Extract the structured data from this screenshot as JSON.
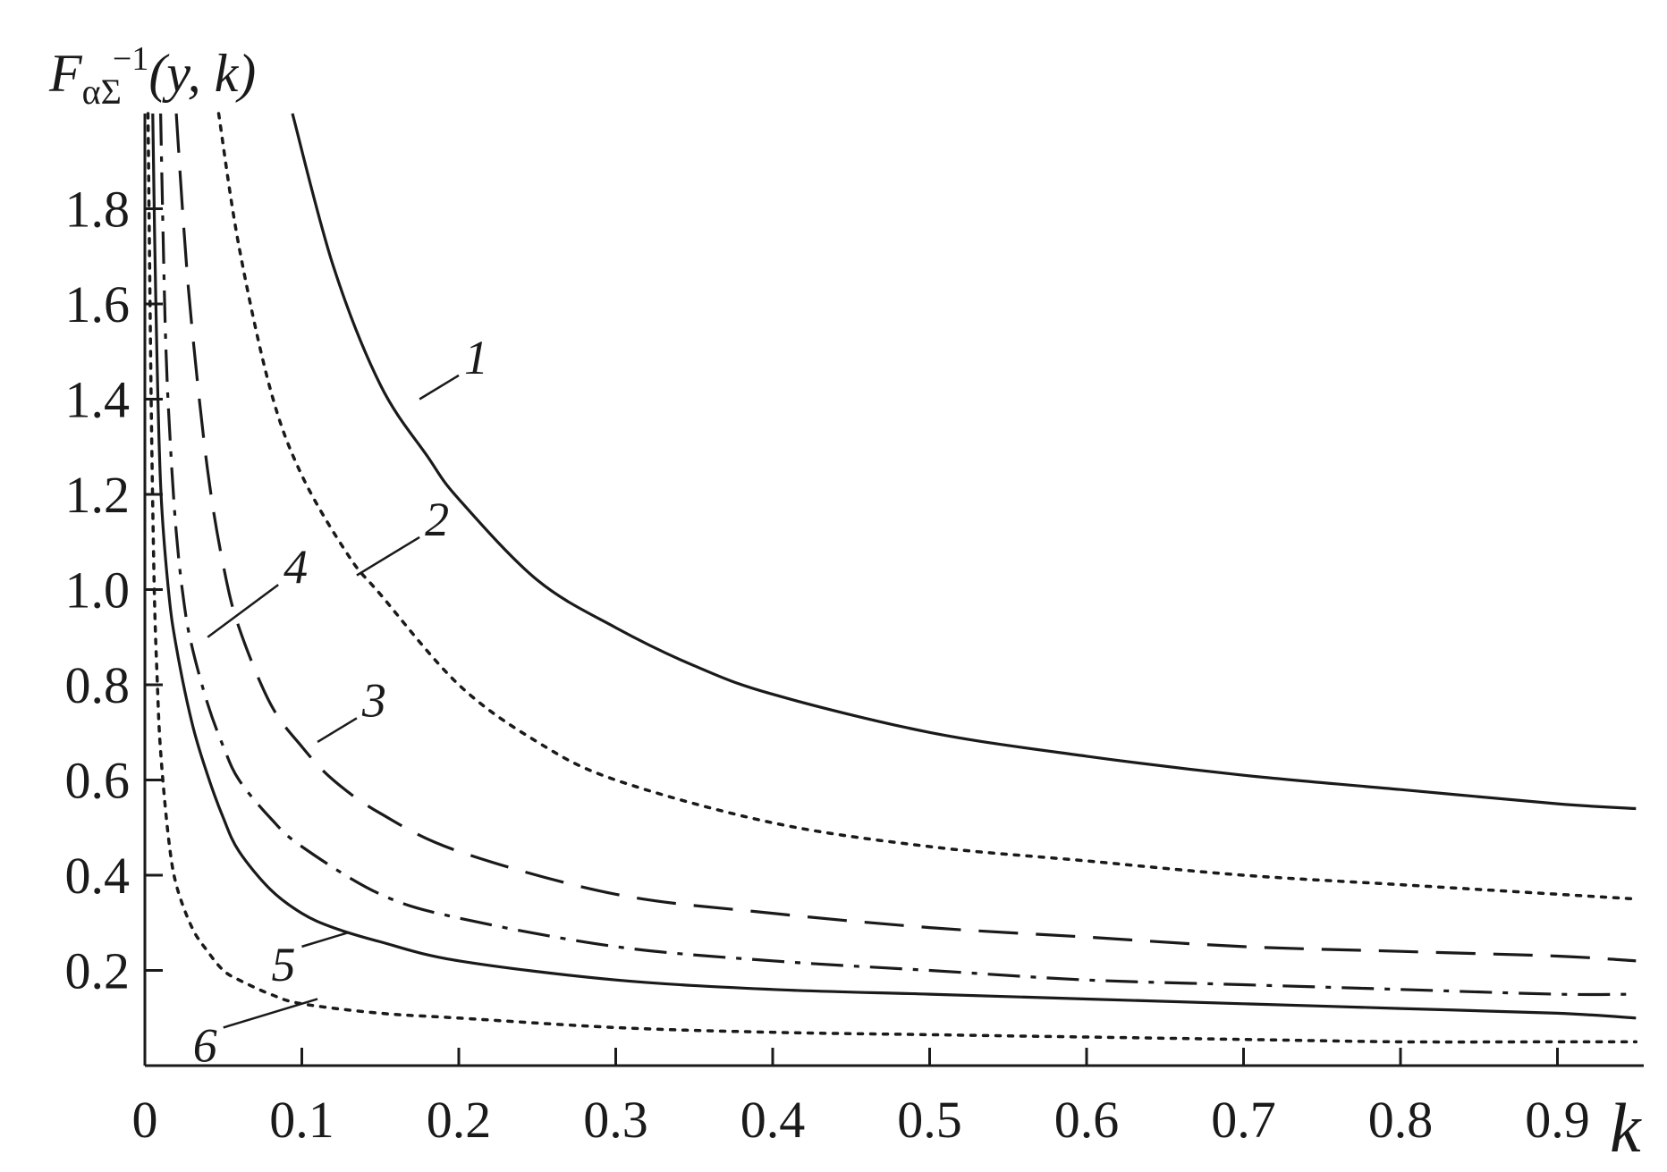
{
  "chart_data": {
    "type": "line",
    "ylabel": {
      "main": "F",
      "sub": "α",
      "sub2": "Σ",
      "sup": "−1",
      "args": "(y, k)"
    },
    "xlabel": "k",
    "xlim": [
      0,
      0.95
    ],
    "ylim": [
      0,
      2.0
    ],
    "xticks": [
      "0",
      "0.1",
      "0.2",
      "0.3",
      "0.4",
      "0.5",
      "0.6",
      "0.7",
      "0.8",
      "0.9"
    ],
    "yticks": [
      "0.2",
      "0.4",
      "0.6",
      "0.8",
      "1.0",
      "1.2",
      "1.4",
      "1.6",
      "1.8"
    ],
    "grid": false,
    "series": [
      {
        "name": "1",
        "style": "solid",
        "x": [
          0.094,
          0.12,
          0.15,
          0.18,
          0.2,
          0.25,
          0.3,
          0.35,
          0.4,
          0.5,
          0.6,
          0.7,
          0.8,
          0.9,
          0.95
        ],
        "y": [
          2.0,
          1.68,
          1.43,
          1.28,
          1.19,
          1.02,
          0.92,
          0.84,
          0.78,
          0.7,
          0.65,
          0.61,
          0.58,
          0.55,
          0.54
        ]
      },
      {
        "name": "2",
        "style": "dotted",
        "x": [
          0.047,
          0.06,
          0.08,
          0.1,
          0.13,
          0.15,
          0.2,
          0.25,
          0.3,
          0.4,
          0.5,
          0.6,
          0.7,
          0.8,
          0.9,
          0.95
        ],
        "y": [
          2.0,
          1.72,
          1.42,
          1.24,
          1.07,
          0.99,
          0.8,
          0.68,
          0.6,
          0.51,
          0.46,
          0.43,
          0.4,
          0.38,
          0.36,
          0.35
        ]
      },
      {
        "name": "3",
        "style": "dashed",
        "x": [
          0.02,
          0.025,
          0.03,
          0.04,
          0.05,
          0.06,
          0.08,
          0.1,
          0.12,
          0.15,
          0.2,
          0.3,
          0.4,
          0.5,
          0.6,
          0.7,
          0.8,
          0.9,
          0.95
        ],
        "y": [
          2.0,
          1.75,
          1.55,
          1.25,
          1.05,
          0.92,
          0.76,
          0.67,
          0.6,
          0.53,
          0.45,
          0.36,
          0.32,
          0.29,
          0.27,
          0.25,
          0.24,
          0.23,
          0.22
        ]
      },
      {
        "name": "4",
        "style": "dashdot",
        "x": [
          0.01,
          0.013,
          0.016,
          0.02,
          0.025,
          0.03,
          0.04,
          0.05,
          0.06,
          0.08,
          0.1,
          0.15,
          0.2,
          0.3,
          0.4,
          0.5,
          0.6,
          0.7,
          0.8,
          0.9,
          0.95
        ],
        "y": [
          2.0,
          1.55,
          1.32,
          1.12,
          0.97,
          0.88,
          0.76,
          0.67,
          0.6,
          0.52,
          0.46,
          0.36,
          0.31,
          0.25,
          0.22,
          0.2,
          0.18,
          0.17,
          0.16,
          0.15,
          0.15
        ]
      },
      {
        "name": "5",
        "style": "solid",
        "x": [
          0.005,
          0.007,
          0.01,
          0.015,
          0.02,
          0.03,
          0.04,
          0.05,
          0.06,
          0.08,
          0.1,
          0.12,
          0.15,
          0.2,
          0.3,
          0.4,
          0.5,
          0.6,
          0.7,
          0.8,
          0.9,
          0.95
        ],
        "y": [
          2.0,
          1.6,
          1.22,
          1.0,
          0.88,
          0.72,
          0.61,
          0.52,
          0.45,
          0.37,
          0.32,
          0.29,
          0.26,
          0.22,
          0.18,
          0.16,
          0.15,
          0.14,
          0.13,
          0.12,
          0.11,
          0.1
        ]
      },
      {
        "name": "6",
        "style": "dotted",
        "x": [
          0.002,
          0.004,
          0.006,
          0.008,
          0.01,
          0.015,
          0.02,
          0.03,
          0.04,
          0.05,
          0.06,
          0.08,
          0.1,
          0.15,
          0.2,
          0.3,
          0.4,
          0.5,
          0.6,
          0.7,
          0.8,
          0.9,
          0.95
        ],
        "y": [
          2.0,
          1.4,
          1.0,
          0.8,
          0.66,
          0.48,
          0.38,
          0.29,
          0.24,
          0.2,
          0.18,
          0.15,
          0.13,
          0.11,
          0.1,
          0.08,
          0.07,
          0.065,
          0.06,
          0.055,
          0.05,
          0.05,
          0.05
        ]
      }
    ],
    "labels": [
      {
        "series": "1",
        "text": "1",
        "at": [
          0.2,
          1.45
        ],
        "anchor": [
          0.175,
          1.4
        ]
      },
      {
        "series": "2",
        "text": "2",
        "at": [
          0.175,
          1.11
        ],
        "anchor": [
          0.135,
          1.03
        ]
      },
      {
        "series": "3",
        "text": "3",
        "at": [
          0.135,
          0.73
        ],
        "anchor": [
          0.11,
          0.68
        ]
      },
      {
        "series": "4",
        "text": "4",
        "at": [
          0.085,
          1.01
        ],
        "anchor": [
          0.04,
          0.9
        ]
      },
      {
        "series": "5",
        "text": "5",
        "at": [
          0.1,
          0.25
        ],
        "anchor": [
          0.13,
          0.28
        ]
      },
      {
        "series": "6",
        "text": "6",
        "at": [
          0.05,
          0.08
        ],
        "anchor": [
          0.11,
          0.14
        ]
      }
    ]
  }
}
